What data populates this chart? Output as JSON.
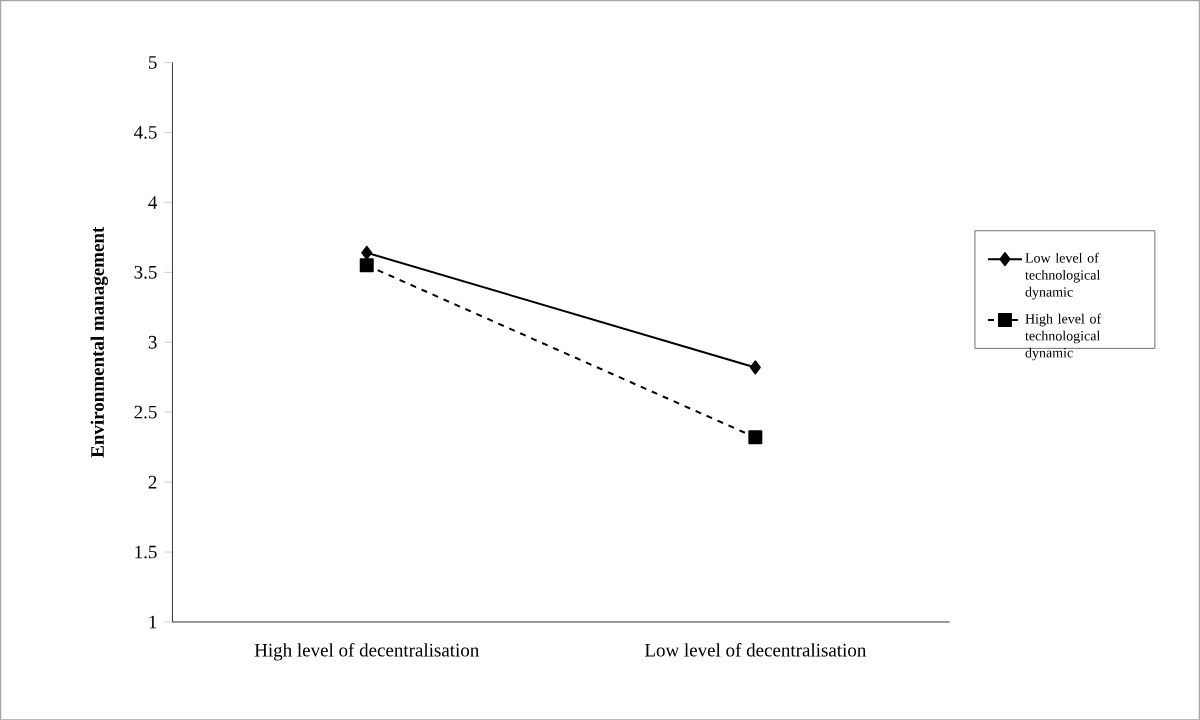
{
  "chart_data": {
    "type": "line",
    "ylabel": "Environmental  management",
    "categories": [
      "High level of decentralisation",
      "Low level of decentralisation"
    ],
    "series": [
      {
        "name": "Low level of technological dynamic",
        "color": "#000000",
        "values": [
          3.64,
          2.82
        ],
        "marker": "diamond",
        "line_style": "solid"
      },
      {
        "name": "High level of technological dynamic",
        "color": "#000000",
        "values": [
          3.55,
          2.32
        ],
        "marker": "square",
        "line_style": "dashed"
      }
    ],
    "ylim": [
      1,
      5
    ],
    "yticks": [
      1,
      1.5,
      2,
      2.5,
      3,
      3.5,
      4,
      4.5,
      5
    ],
    "grid": false,
    "legend": "right"
  }
}
